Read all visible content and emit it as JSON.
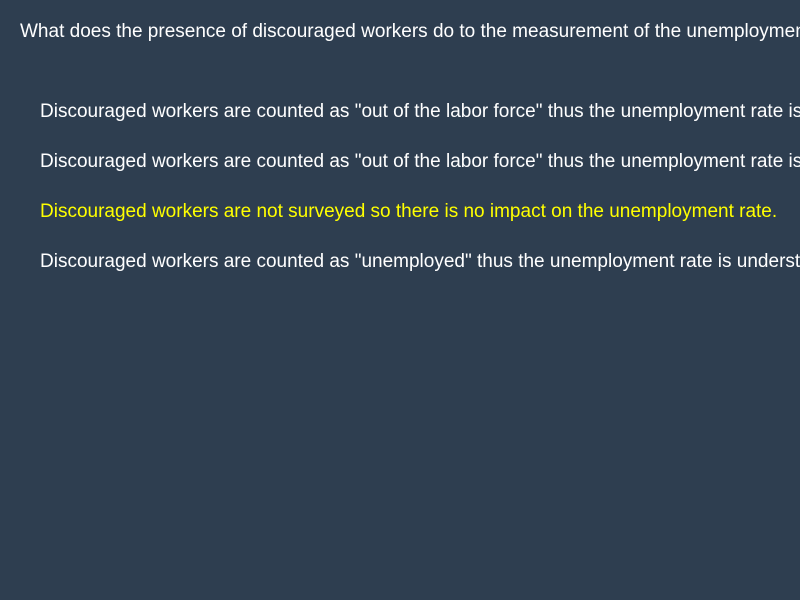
{
  "question": {
    "text": "What does the presence of discouraged workers do to the measurement of the unemployment rate?"
  },
  "answers": [
    {
      "label": "Discouraged workers are counted as \"out of the labor force\" thus the unemployment rate is understated."
    },
    {
      "label": "Discouraged workers are counted as \"out of the labor force\" thus the unemployment rate is overstated."
    },
    {
      "label": "Discouraged workers are not surveyed so there is no impact on the unemployment rate."
    },
    {
      "label": "Discouraged workers are counted as \"unemployed\" thus the unemployment rate is understated."
    }
  ],
  "colors": {
    "background": "#2e3e50",
    "text": "#ffffff",
    "highlight": "#ffff00"
  },
  "selected_index": 2
}
